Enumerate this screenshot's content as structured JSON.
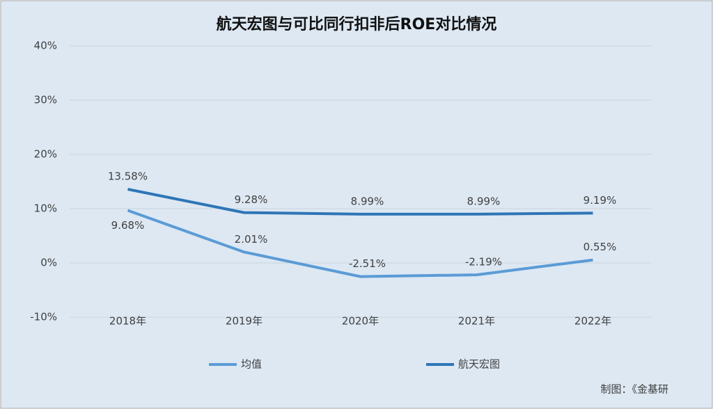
{
  "chart_data": {
    "type": "line",
    "title": "航天宏图与可比同行扣非后ROE对比情况",
    "categories": [
      "2018年",
      "2019年",
      "2020年",
      "2021年",
      "2022年"
    ],
    "series": [
      {
        "name": "均值",
        "color": "#5b9bd5",
        "values": [
          9.68,
          2.01,
          -2.51,
          -2.19,
          0.55
        ],
        "value_labels": [
          "9.68%",
          "2.01%",
          "-2.51%",
          "-2.19%",
          "0.55%"
        ]
      },
      {
        "name": "航天宏图",
        "color": "#2e75b6",
        "values": [
          13.58,
          9.28,
          8.99,
          8.99,
          9.19
        ],
        "value_labels": [
          "13.58%",
          "9.28%",
          "8.99%",
          "8.99%",
          "9.19%"
        ]
      }
    ],
    "ylim": [
      -10,
      40
    ],
    "yticks": [
      {
        "value": -10,
        "label": "-10%"
      },
      {
        "value": 0,
        "label": "0%"
      },
      {
        "value": 10,
        "label": "10%"
      },
      {
        "value": 20,
        "label": "20%"
      },
      {
        "value": 30,
        "label": "30%"
      },
      {
        "value": 40,
        "label": "40%"
      }
    ],
    "grid": true,
    "legend": "bottom",
    "source": "制图：《金基研"
  }
}
